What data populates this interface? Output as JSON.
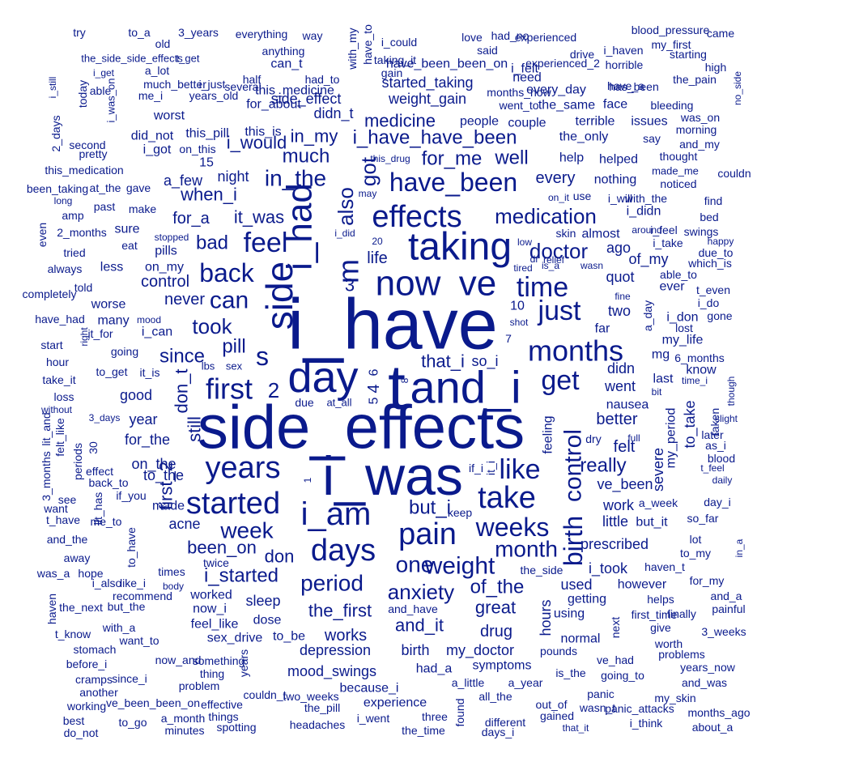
{
  "wordcloud": {
    "color": "#0a1a8c",
    "words": [
      "i_have",
      "side_effects",
      "i_was",
      "t",
      "and_i",
      "day",
      "taking",
      "now",
      "ve",
      "side",
      "effects",
      "i_had",
      "have_been",
      "i_am",
      "years",
      "started",
      "pain",
      "take",
      "months",
      "first",
      "like",
      "get",
      "days",
      "time",
      "just",
      "feel",
      "weeks",
      "birth",
      "control",
      "medication",
      "s",
      "m",
      "also",
      "got",
      "2",
      "doctor",
      "can",
      "back",
      "week",
      "weight",
      "one",
      "period",
      "anxiety",
      "month",
      "in_the",
      "much",
      "well",
      "for_me",
      "medicine",
      "i_have_have_been",
      "i_would",
      "in_my",
      "didn_t",
      "side_effect",
      "weight_gain",
      "started_taking",
      "it_was",
      "when_i",
      "bad",
      "pill",
      "took",
      "since",
      "never",
      "control",
      "for_a",
      "a_few",
      "night",
      "every",
      "3",
      "4",
      "5",
      "6",
      "7",
      "8",
      "that_i",
      "so_i",
      "but_i",
      "the_first",
      "and_it",
      "great",
      "of_the",
      "and_have",
      "drug",
      "works",
      "depression",
      "birth",
      "my_doctor",
      "had_a",
      "symptoms",
      "mood_swings",
      "because_i",
      "experience",
      "the_pill",
      "i_went",
      "three",
      "different",
      "headaches",
      "a_little",
      "a_year",
      "all_the",
      "out_of",
      "gained",
      "that_it",
      "been_on",
      "don",
      "i_started",
      "sleep",
      "dose",
      "to_be",
      "sex_drive",
      "feel_like",
      "now_i",
      "worked",
      "recommend",
      "times",
      "acne",
      "made",
      "on_the",
      "to_the",
      "for_the",
      "year",
      "good",
      "it_is",
      "to_get",
      "i_can",
      "going",
      "it_for",
      "still",
      "don_t",
      "first_2",
      "lbs",
      "sex",
      "at_all",
      "due",
      "really",
      "better",
      "felt",
      "went",
      "didn",
      "last",
      "mg",
      "my_life",
      "i_don",
      "lost",
      "i_do",
      "gone",
      "ever",
      "quot",
      "of_my",
      "i_take",
      "i_feel",
      "ago",
      "two",
      "a_day",
      "my_period",
      "severe",
      "ve_been",
      "to_take",
      "taken",
      "as_i",
      "blood",
      "daily",
      "so_far",
      "day_i",
      "a_week",
      "little",
      "but_it",
      "work",
      "prescribed",
      "i_took",
      "haven_t",
      "however",
      "used",
      "getting",
      "using",
      "normal",
      "next",
      "hours",
      "feeling",
      "the_only",
      "help",
      "helped",
      "thought",
      "made_me",
      "noticed",
      "nothing",
      "with_the",
      "i_will",
      "use",
      "on_it",
      "almost",
      "skin",
      "life",
      "i_did",
      "20",
      "low",
      "dr",
      "relief",
      "tired",
      "is_a",
      "wasn",
      "fine",
      "10",
      "shot",
      "far",
      "know",
      "time_i",
      "bit",
      "though",
      "slight",
      "later",
      "t_feel",
      "nausea",
      "full",
      "dry",
      "it_i",
      "if_i",
      "1",
      "keep",
      "lot",
      "to_my",
      "in_a",
      "for_my",
      "and_a",
      "painful",
      "helps",
      "first_time",
      "finally",
      "give",
      "3_weeks",
      "worth",
      "problems",
      "years_now",
      "and_was",
      "my_skin",
      "months_ago",
      "about_a",
      "i_think",
      "panic_attacks",
      "wasn_t",
      "panic",
      "going_to",
      "ve_had",
      "pounds",
      "is_the",
      "the_side",
      "try",
      "to_a",
      "3_years",
      "everything",
      "way",
      "i_could",
      "love",
      "experienced",
      "blood_pressure",
      "came",
      "my_first",
      "starting",
      "i_haven",
      "drive",
      "said",
      "have_been_been_on",
      "taking_it",
      "gain",
      "old",
      "the_side_side_effects",
      "t_get",
      "anything",
      "with_my",
      "have_to",
      "had_to",
      "half",
      "several",
      "can_t",
      "this_medicine",
      "for_about",
      "a_lot",
      "much_better",
      "i_just",
      "me_i",
      "years_old",
      "able",
      "i_get",
      "i_still",
      "today",
      "i_was_on",
      "2_days",
      "second",
      "pretty",
      "worst",
      "did_not",
      "this_pill",
      "this_is",
      "i_got",
      "on_this",
      "15",
      "this_medication",
      "been_taking",
      "at_the",
      "gave",
      "long",
      "past",
      "make",
      "amp",
      "2_months",
      "sure",
      "stopped",
      "eat",
      "pills",
      "tried",
      "always",
      "less",
      "on_my",
      "even",
      "completely",
      "told",
      "worse",
      "have_had",
      "many",
      "mood",
      "start",
      "right",
      "hour",
      "take_it",
      "loss",
      "without",
      "lit_and",
      "felt_like",
      "3_days",
      "30",
      "periods",
      "3_months",
      "back_to",
      "effect",
      "see",
      "want",
      "t_have",
      "if_you",
      "me_to",
      "lit_has",
      "and_the",
      "away",
      "to_have",
      "was_a",
      "hope",
      "i_also",
      "like_i",
      "body",
      "twice",
      "haven",
      "the_next",
      "but_the",
      "t_know",
      "with_a",
      "want_to",
      "stomach",
      "before_i",
      "now_and",
      "something",
      "years",
      "thing",
      "cramps",
      "since_i",
      "problem",
      "another",
      "working",
      "ve_been_been_on",
      "effective",
      "things",
      "couldn_t",
      "two_weeks",
      "a_month",
      "best",
      "to_go",
      "minutes",
      "spotting",
      "do_not",
      "the_time",
      "days_i",
      "found",
      "had_no",
      "i_felt",
      "experienced_2",
      "horrible",
      "high",
      "months_now",
      "every_day",
      "need",
      "have_a",
      "has_been",
      "the_pain",
      "went_to",
      "the_same",
      "face",
      "bleeding",
      "was_on",
      "no_side",
      "terrible",
      "issues",
      "morning",
      "people",
      "couple",
      "say",
      "and_my",
      "couldn",
      "this_drug",
      "may",
      "find",
      "bed",
      "swings",
      "happy",
      "due_to",
      "which_is",
      "able_to",
      "t_even",
      "6_months",
      "i_didn",
      "around",
      "2_weeks",
      "i_feel_2"
    ]
  }
}
